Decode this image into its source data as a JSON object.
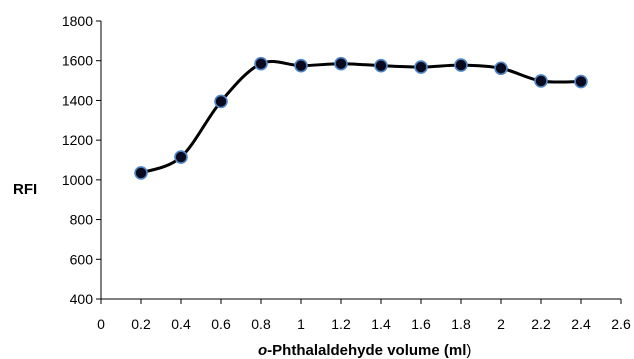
{
  "chart_data": {
    "type": "line",
    "title": "",
    "xlabel_prefix": "o",
    "xlabel_main": "-Phthalaldehyde volume (ml",
    "xlabel_suffix": ")",
    "ylabel": "RFI",
    "xlim": [
      0,
      2.6
    ],
    "ylim": [
      400,
      1800
    ],
    "xticks": [
      0,
      0.2,
      0.4,
      0.6,
      0.8,
      1,
      1.2,
      1.4,
      1.6,
      1.8,
      2,
      2.2,
      2.4,
      2.6
    ],
    "xtick_labels": [
      "0",
      "0.2",
      "0.4",
      "0.6",
      "0.8",
      "1",
      "1.2",
      "1.4",
      "1.6",
      "1.8",
      "2",
      "2.2",
      "2.4",
      "2.6"
    ],
    "yticks": [
      400,
      600,
      800,
      1000,
      1200,
      1400,
      1600,
      1800
    ],
    "ytick_labels": [
      "400",
      "600",
      "800",
      "1000",
      "1200",
      "1400",
      "1600",
      "1800"
    ],
    "grid": false,
    "legend": "none",
    "series": [
      {
        "x": [
          0.2,
          0.4,
          0.6,
          0.8,
          1.0,
          1.2,
          1.4,
          1.6,
          1.8,
          2.0,
          2.2,
          2.4
        ],
        "values": [
          1035,
          1115,
          1395,
          1585,
          1575,
          1585,
          1575,
          1568,
          1578,
          1562,
          1498,
          1495
        ],
        "line_color": "#000000",
        "marker_fill": "#0a0a1e",
        "marker_edge": "#4f86c6"
      }
    ]
  }
}
